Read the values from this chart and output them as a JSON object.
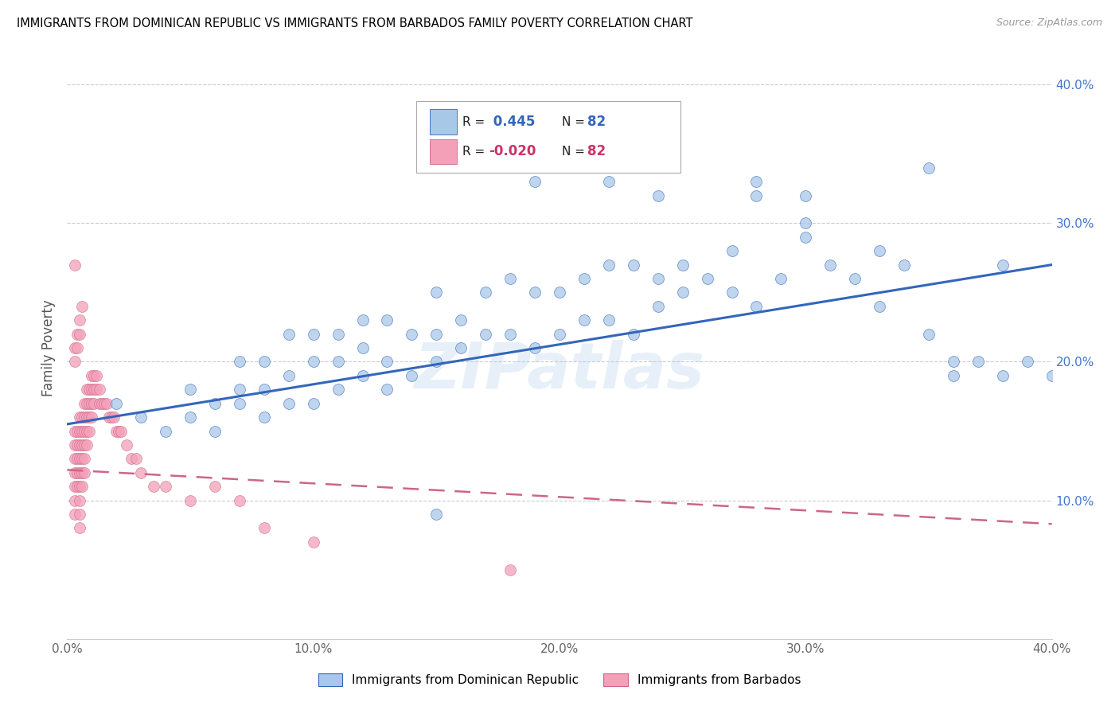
{
  "title": "IMMIGRANTS FROM DOMINICAN REPUBLIC VS IMMIGRANTS FROM BARBADOS FAMILY POVERTY CORRELATION CHART",
  "source": "Source: ZipAtlas.com",
  "ylabel": "Family Poverty",
  "legend_label_blue": "Immigrants from Dominican Republic",
  "legend_label_pink": "Immigrants from Barbados",
  "R_blue": 0.445,
  "N_blue": 82,
  "R_pink": -0.02,
  "N_pink": 82,
  "color_blue": "#a8c8e8",
  "color_pink": "#f4a0b8",
  "trendline_blue": "#3366bb",
  "trendline_pink": "#cc6688",
  "watermark": "ZIPatlas",
  "xlim": [
    0.0,
    0.4
  ],
  "ylim": [
    0.0,
    0.42
  ],
  "yticks": [
    0.1,
    0.2,
    0.3,
    0.4
  ],
  "xticks": [
    0.0,
    0.1,
    0.2,
    0.3,
    0.4
  ],
  "blue_scatter_x": [
    0.02,
    0.03,
    0.04,
    0.05,
    0.05,
    0.06,
    0.06,
    0.07,
    0.07,
    0.07,
    0.08,
    0.08,
    0.08,
    0.09,
    0.09,
    0.09,
    0.1,
    0.1,
    0.1,
    0.11,
    0.11,
    0.11,
    0.12,
    0.12,
    0.12,
    0.13,
    0.13,
    0.13,
    0.14,
    0.14,
    0.15,
    0.15,
    0.15,
    0.16,
    0.16,
    0.17,
    0.17,
    0.18,
    0.18,
    0.19,
    0.19,
    0.2,
    0.2,
    0.21,
    0.21,
    0.22,
    0.22,
    0.23,
    0.23,
    0.24,
    0.24,
    0.25,
    0.25,
    0.26,
    0.27,
    0.27,
    0.28,
    0.28,
    0.29,
    0.3,
    0.3,
    0.31,
    0.32,
    0.33,
    0.34,
    0.35,
    0.35,
    0.36,
    0.37,
    0.38,
    0.39,
    0.4,
    0.17,
    0.19,
    0.22,
    0.24,
    0.28,
    0.3,
    0.33,
    0.36,
    0.38,
    0.15
  ],
  "blue_scatter_y": [
    0.17,
    0.16,
    0.15,
    0.16,
    0.18,
    0.15,
    0.17,
    0.17,
    0.18,
    0.2,
    0.16,
    0.18,
    0.2,
    0.17,
    0.19,
    0.22,
    0.17,
    0.2,
    0.22,
    0.18,
    0.2,
    0.22,
    0.19,
    0.21,
    0.23,
    0.18,
    0.2,
    0.23,
    0.19,
    0.22,
    0.2,
    0.22,
    0.25,
    0.21,
    0.23,
    0.22,
    0.25,
    0.22,
    0.26,
    0.21,
    0.25,
    0.22,
    0.25,
    0.23,
    0.26,
    0.23,
    0.27,
    0.22,
    0.27,
    0.24,
    0.26,
    0.25,
    0.27,
    0.26,
    0.25,
    0.28,
    0.32,
    0.24,
    0.26,
    0.29,
    0.32,
    0.27,
    0.26,
    0.24,
    0.27,
    0.22,
    0.34,
    0.2,
    0.2,
    0.27,
    0.2,
    0.19,
    0.35,
    0.33,
    0.33,
    0.32,
    0.33,
    0.3,
    0.28,
    0.19,
    0.19,
    0.09
  ],
  "pink_scatter_x": [
    0.003,
    0.003,
    0.003,
    0.003,
    0.003,
    0.003,
    0.003,
    0.004,
    0.004,
    0.004,
    0.004,
    0.004,
    0.005,
    0.005,
    0.005,
    0.005,
    0.005,
    0.005,
    0.005,
    0.005,
    0.005,
    0.006,
    0.006,
    0.006,
    0.006,
    0.006,
    0.006,
    0.007,
    0.007,
    0.007,
    0.007,
    0.007,
    0.007,
    0.008,
    0.008,
    0.008,
    0.008,
    0.008,
    0.009,
    0.009,
    0.009,
    0.009,
    0.01,
    0.01,
    0.01,
    0.01,
    0.011,
    0.011,
    0.011,
    0.012,
    0.012,
    0.013,
    0.013,
    0.014,
    0.015,
    0.016,
    0.017,
    0.018,
    0.019,
    0.02,
    0.021,
    0.022,
    0.024,
    0.026,
    0.028,
    0.03,
    0.035,
    0.04,
    0.05,
    0.06,
    0.07,
    0.08,
    0.1,
    0.003,
    0.003,
    0.004,
    0.004,
    0.005,
    0.005,
    0.006,
    0.18,
    0.003
  ],
  "pink_scatter_y": [
    0.15,
    0.14,
    0.13,
    0.12,
    0.11,
    0.1,
    0.09,
    0.15,
    0.14,
    0.13,
    0.12,
    0.11,
    0.16,
    0.15,
    0.14,
    0.13,
    0.12,
    0.11,
    0.1,
    0.09,
    0.08,
    0.16,
    0.15,
    0.14,
    0.13,
    0.12,
    0.11,
    0.17,
    0.16,
    0.15,
    0.14,
    0.13,
    0.12,
    0.18,
    0.17,
    0.16,
    0.15,
    0.14,
    0.18,
    0.17,
    0.16,
    0.15,
    0.19,
    0.18,
    0.17,
    0.16,
    0.19,
    0.18,
    0.17,
    0.19,
    0.18,
    0.18,
    0.17,
    0.17,
    0.17,
    0.17,
    0.16,
    0.16,
    0.16,
    0.15,
    0.15,
    0.15,
    0.14,
    0.13,
    0.13,
    0.12,
    0.11,
    0.11,
    0.1,
    0.11,
    0.1,
    0.08,
    0.07,
    0.21,
    0.2,
    0.22,
    0.21,
    0.23,
    0.22,
    0.24,
    0.05,
    0.27
  ]
}
